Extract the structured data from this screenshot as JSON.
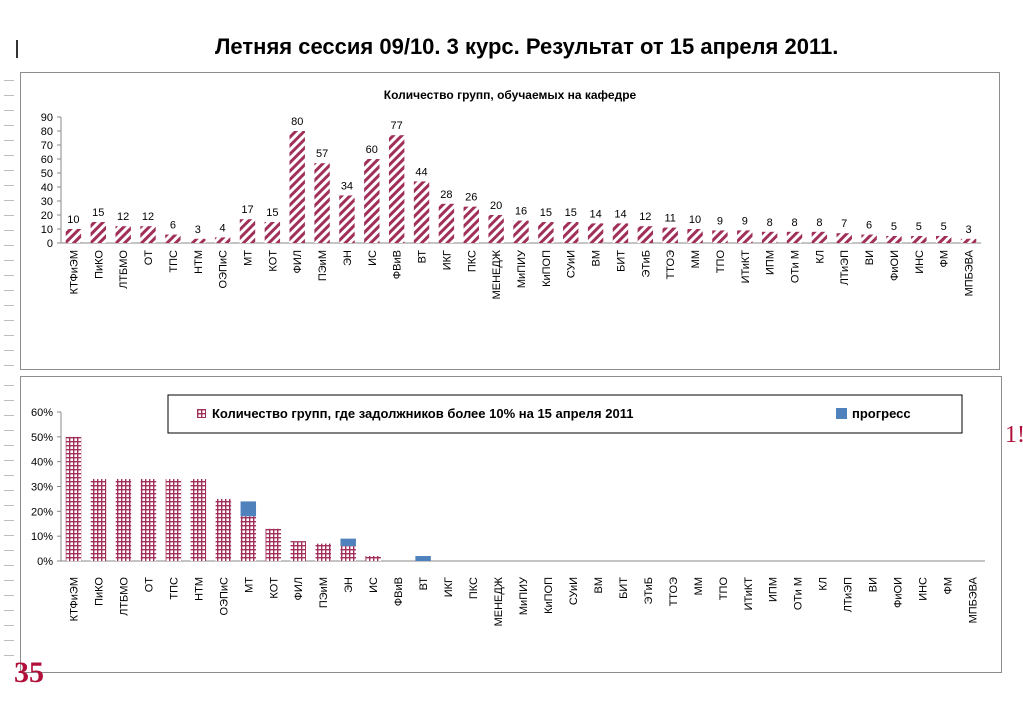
{
  "slide": {
    "title": "Летняя сессия 09/10.   3 курс.   Результат от 15 апреля 2011.",
    "page_number": "35",
    "edge_mark": "1!"
  },
  "colors": {
    "bar_main": "#a0305a",
    "progress": "#4f81bd",
    "frame": "#8c8c8c",
    "slide_number": "#b0103a"
  },
  "chart_data": [
    {
      "type": "bar",
      "title": "Количество групп, обучаемых на кафедре",
      "categories": [
        "КТФиЭМ",
        "ПиКО",
        "ЛТБМО",
        "ОТ",
        "ТПС",
        "НТМ",
        "ОЭПиС",
        "МТ",
        "КОТ",
        "ФИЛ",
        "ПЭиМ",
        "ЭН",
        "ИС",
        "ФВиВ",
        "ВТ",
        "ИКГ",
        "ПКС",
        "МЕНЕДЖ",
        "МиПИУ",
        "КиПОП",
        "СУиИ",
        "ВМ",
        "БИТ",
        "ЭТиБ",
        "ТТОЭ",
        "ММ",
        "ТПО",
        "ИТиКТ",
        "ИПМ",
        "ОТи М",
        "КЛ",
        "ЛТиЭП",
        "ВИ",
        "ФиОИ",
        "ИНС",
        "ФМ",
        "МПБЭВА"
      ],
      "values": [
        10,
        15,
        12,
        12,
        6,
        3,
        4,
        17,
        15,
        80,
        57,
        34,
        60,
        77,
        44,
        28,
        26,
        20,
        16,
        15,
        15,
        14,
        14,
        12,
        11,
        10,
        9,
        9,
        8,
        8,
        8,
        7,
        6,
        5,
        5,
        5,
        3
      ],
      "ylim": [
        0,
        90
      ],
      "yticks": [
        "0",
        "10",
        "20",
        "30",
        "40",
        "50",
        "60",
        "70",
        "80",
        "90"
      ],
      "data_labels": true,
      "pattern": "diagonal-hatch",
      "legend": "none",
      "grid": false
    },
    {
      "type": "bar",
      "stacked": true,
      "categories": [
        "КТФиЭМ",
        "ПиКО",
        "ЛТБМО",
        "ОТ",
        "ТПС",
        "НТМ",
        "ОЭПиС",
        "МТ",
        "КОТ",
        "ФИЛ",
        "ПЭиМ",
        "ЭН",
        "ИС",
        "ФВиВ",
        "ВТ",
        "ИКГ",
        "ПКС",
        "МЕНЕДЖ",
        "МиПИУ",
        "КиПОП",
        "СУиИ",
        "ВМ",
        "БИТ",
        "ЭТиБ",
        "ТТОЭ",
        "ММ",
        "ТПО",
        "ИТиКТ",
        "ИПМ",
        "ОТи М",
        "КЛ",
        "ЛТиЭП",
        "ВИ",
        "ФиОИ",
        "ИНС",
        "ФМ",
        "МПБЭВА"
      ],
      "series": [
        {
          "name": "Количество групп, где задолжников более  10% на 15 апреля 2011",
          "values": [
            50,
            33,
            33,
            33,
            33,
            33,
            25,
            18,
            13,
            8,
            7,
            6,
            2,
            0,
            0,
            0,
            0,
            0,
            0,
            0,
            0,
            0,
            0,
            0,
            0,
            0,
            0,
            0,
            0,
            0,
            0,
            0,
            0,
            0,
            0,
            0,
            0
          ],
          "pattern": "grid"
        },
        {
          "name": "прогресс",
          "values": [
            0,
            0,
            0,
            0,
            0,
            0,
            0,
            6,
            0,
            0,
            0,
            3,
            0,
            0,
            2,
            0,
            0,
            0,
            0,
            0,
            0,
            0,
            0,
            0,
            0,
            0,
            0,
            0,
            0,
            0,
            0,
            0,
            0,
            0,
            0,
            0,
            0
          ]
        }
      ],
      "ylim": [
        0,
        60
      ],
      "yticks": [
        "0%",
        "10%",
        "20%",
        "30%",
        "40%",
        "50%",
        "60%"
      ],
      "legend": "top",
      "grid": false
    }
  ]
}
